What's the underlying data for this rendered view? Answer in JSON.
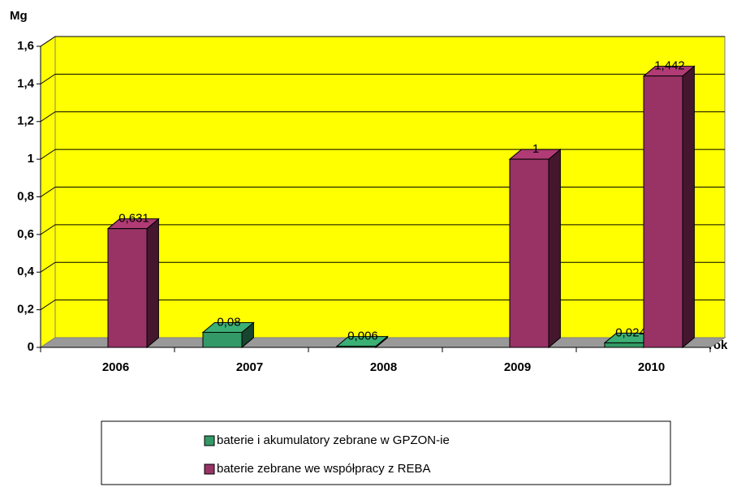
{
  "chart_data": {
    "type": "bar3d",
    "y_label": "Mg",
    "x_label": "rok",
    "categories": [
      "2006",
      "2007",
      "2008",
      "2009",
      "2010"
    ],
    "series": [
      {
        "name": "baterie i akumulatory zebrane w GPZON-ie",
        "color": "#339966",
        "values": [
          null,
          0.08,
          0.006,
          null,
          0.024
        ],
        "value_labels": [
          null,
          "0,08",
          "0,006",
          null,
          "0,024"
        ]
      },
      {
        "name": "baterie zebrane we współpracy z REBA",
        "color": "#993366",
        "values": [
          0.631,
          null,
          null,
          1,
          1.442
        ],
        "value_labels": [
          "0,631",
          null,
          null,
          "1",
          "1,442"
        ]
      }
    ],
    "ylim": [
      0,
      1.6
    ],
    "yticks": [
      0,
      {
        "value": 0.2,
        "label": "0,2"
      },
      {
        "value": 0.4,
        "label": "0,4"
      },
      {
        "value": 0.6,
        "label": "0,6"
      },
      {
        "value": 0.8,
        "label": "0,8"
      },
      1,
      {
        "value": 1.2,
        "label": "1,2"
      },
      {
        "value": 1.4,
        "label": "1,4"
      },
      {
        "value": 1.6,
        "label": "1,6"
      }
    ],
    "grid": true,
    "wall_color": "#ffff00"
  }
}
